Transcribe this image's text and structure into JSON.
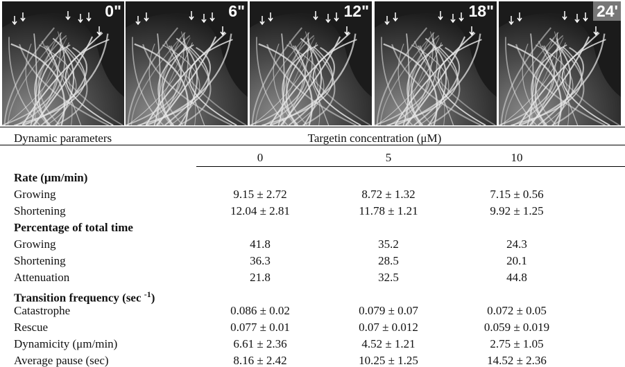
{
  "figure": {
    "panels": [
      {
        "time": "0\""
      },
      {
        "time": "6\""
      },
      {
        "time": "12\""
      },
      {
        "time": "18\""
      },
      {
        "time": "24'"
      }
    ]
  },
  "table": {
    "parameter_header": "Dynamic parameters",
    "concentration_header": "Targetin concentration (μM)",
    "concentrations": [
      "0",
      "5",
      "10"
    ],
    "rows": [
      {
        "section": "Rate (μm/min)"
      },
      {
        "label": "Growing",
        "values": [
          "9.15 ± 2.72",
          "8.72 ± 1.32",
          "7.15 ± 0.56"
        ]
      },
      {
        "label": "Shortening",
        "values": [
          "12.04 ± 2.81",
          "11.78 ± 1.21",
          "9.92 ± 1.25"
        ]
      },
      {
        "section": "Percentage of total time"
      },
      {
        "label": "Growing",
        "values": [
          "41.8",
          "35.2",
          "24.3"
        ]
      },
      {
        "label": "Shortening",
        "values": [
          "36.3",
          "28.5",
          "20.1"
        ]
      },
      {
        "label": "Attenuation",
        "values": [
          "21.8",
          "32.5",
          "44.8"
        ]
      },
      {
        "section": "Transition frequency (sec ",
        "superscript": "-1",
        "section_end": ")"
      },
      {
        "label": "Catastrophe",
        "values": [
          "0.086 ± 0.02",
          "0.079 ± 0.07",
          "0.072 ± 0.05"
        ]
      },
      {
        "label": "Rescue",
        "values": [
          "0.077 ± 0.01",
          "0.07 ± 0.012",
          "0.059 ± 0.019"
        ]
      },
      {
        "label": "Dynamicity (μm/min)",
        "values": [
          "6.61 ± 2.36",
          "4.52 ± 1.21",
          "2.75 ± 1.05"
        ]
      },
      {
        "label": "Average pause (sec)",
        "values": [
          "8.16 ± 2.42",
          "10.25 ± 1.25",
          "14.52 ± 2.36"
        ]
      }
    ]
  }
}
